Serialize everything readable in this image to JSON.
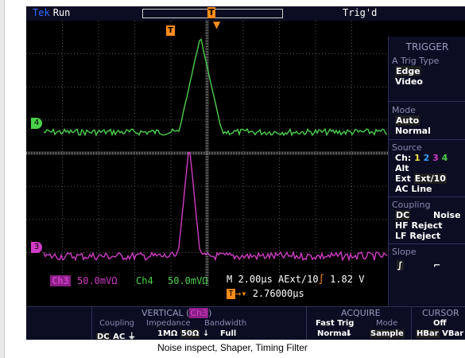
{
  "status": {
    "brand": "Tek",
    "acquisition_state": "Run",
    "trigger_state": "Trig'd",
    "trigger_position_marker": "T"
  },
  "channel_markers": {
    "ch4": "4",
    "ch3": "3"
  },
  "readouts": {
    "ch3_label": "Ch3",
    "ch3_scale": "50.0mVΩ",
    "ch4_label": "Ch4",
    "ch4_scale": "50.0mVΩ",
    "timebase": "M 2.00µs",
    "trigger_source": "AExt/10",
    "trigger_slope_symbol": "∫",
    "trigger_level": "1.82 V",
    "trigger_position": "2.76000µs",
    "trigger_position_arrow": "→▾"
  },
  "trigger_menu": {
    "title": "TRIGGER",
    "type_label": "A Trig Type",
    "type_options": [
      "Edge",
      "Video"
    ],
    "mode_label": "Mode",
    "mode_options": [
      "Auto",
      "Normal"
    ],
    "source_label": "Source",
    "source_ch_prefix": "Ch:",
    "source_channels": [
      "1",
      "2",
      "3",
      "4"
    ],
    "source_alt": "Alt",
    "source_ext": "Ext",
    "source_ext10": "Ext/10",
    "source_acline": "AC Line",
    "coupling_label": "Coupling",
    "coupling_dc": "DC",
    "coupling_noise": "Noise",
    "coupling_hf": "HF Reject",
    "coupling_lf": "LF Reject",
    "slope_label": "Slope",
    "slope_rising": "∫",
    "slope_falling": "⌐"
  },
  "bottom_menu": {
    "vertical_header": "VERTICAL (",
    "vertical_channel": "Ch3",
    "vertical_header_close": ")",
    "coupling_label": "Coupling",
    "coupling_dc": "DC",
    "coupling_ac": "AC",
    "coupling_gnd": "⏚",
    "impedance_label": "Impedance",
    "impedance_1m": "1MΩ",
    "impedance_50": "50Ω",
    "bandwidth_label": "Bandwidth",
    "bandwidth_value": "Full",
    "acquire_header": "ACQUIRE",
    "fast_trig": "Fast Trig",
    "normal": "Normal",
    "mode_label": "Mode",
    "mode_value": "Sample",
    "cursor_header": "CURSOR",
    "cursor_off": "Off",
    "cursor_hbar": "HBar",
    "cursor_vbar": "VBar"
  },
  "caption": "Noise inspect, Shaper, Timing Filter",
  "colors": {
    "ch3": "#d13cc7",
    "ch4": "#4bd04b",
    "trigger": "#ff8c1a",
    "grid": "#4d4d4d"
  }
}
